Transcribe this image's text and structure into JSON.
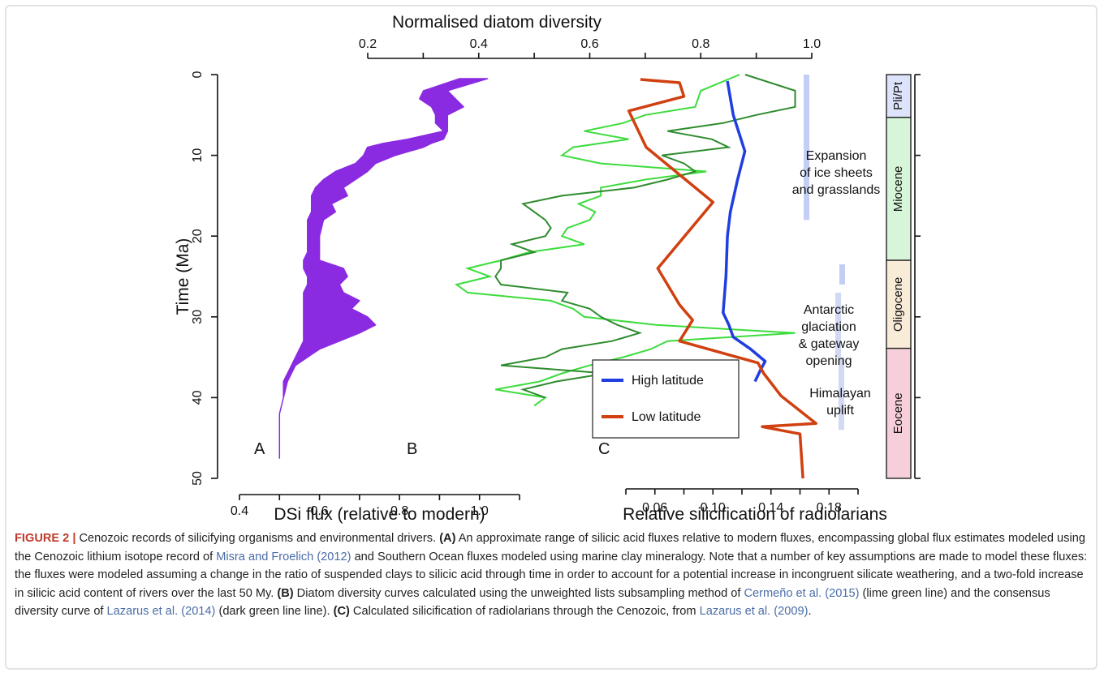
{
  "figure": {
    "label": "FIGURE 2 |",
    "caption_parts": [
      {
        "t": "text",
        "v": " Cenozoic records of silicifying organisms and environmental drivers. "
      },
      {
        "t": "bold",
        "v": "(A)"
      },
      {
        "t": "text",
        "v": " An approximate range of silicic acid fluxes relative to modern fluxes, encompassing global flux estimates modeled using the Cenozoic lithium isotope record of "
      },
      {
        "t": "ref",
        "v": "Misra and Froelich (2012)"
      },
      {
        "t": "text",
        "v": " and Southern Ocean fluxes modeled using marine clay mineralogy. Note that a number of key assumptions are made to model these fluxes: the fluxes were modeled assuming a change in the ratio of suspended clays to silicic acid through time in order to account for a potential increase in incongruent silicate weathering, and a two-fold increase in silicic acid content of rivers over the last 50 My. "
      },
      {
        "t": "bold",
        "v": "(B)"
      },
      {
        "t": "text",
        "v": " Diatom diversity curves calculated using the unweighted lists subsampling method of "
      },
      {
        "t": "ref",
        "v": "Cermeño et al. (2015)"
      },
      {
        "t": "text",
        "v": " (lime green line) and the consensus diversity curve of "
      },
      {
        "t": "ref",
        "v": "Lazarus et al. (2014)"
      },
      {
        "t": "text",
        "v": " (dark green line line). "
      },
      {
        "t": "bold",
        "v": "(C)"
      },
      {
        "t": "text",
        "v": " Calculated silicification of radiolarians through the Cenozoic, from "
      },
      {
        "t": "ref",
        "v": "Lazarus et al. (2009)"
      },
      {
        "t": "text",
        "v": "."
      }
    ]
  },
  "chart_data": [
    {
      "type": "area",
      "panel": "A",
      "xlabel": "DSi flux (relative to modern)",
      "ylabel": "Time (Ma)",
      "xlim": [
        0.4,
        1.1
      ],
      "ylim": [
        50,
        0
      ],
      "x_ticks": [
        0.4,
        0.6,
        0.8,
        1.0
      ],
      "x_tick_labels": [
        "0.4",
        "0.6",
        "0.8",
        "1.0"
      ],
      "y_ticks": [
        0,
        10,
        20,
        30,
        40,
        50
      ],
      "y_tick_labels": [
        "0",
        "10",
        "20",
        "30",
        "40",
        "50"
      ],
      "color": "#8a2be2",
      "series": [
        {
          "age": [
            0.5,
            2,
            3,
            4,
            5,
            6,
            7,
            8,
            8.5,
            9,
            10,
            11,
            12,
            13,
            14,
            15,
            16,
            17,
            18,
            20,
            22,
            23,
            24,
            25,
            26,
            27,
            28,
            29,
            30,
            31,
            32,
            33,
            34,
            35,
            36,
            38,
            40,
            42,
            44,
            46,
            47.5
          ],
          "lower": [
            0.95,
            0.86,
            0.85,
            0.88,
            0.89,
            0.89,
            0.91,
            0.82,
            0.76,
            0.72,
            0.71,
            0.69,
            0.64,
            0.61,
            0.59,
            0.58,
            0.58,
            0.58,
            0.57,
            0.57,
            0.57,
            0.56,
            0.56,
            0.57,
            0.57,
            0.56,
            0.56,
            0.56,
            0.56,
            0.56,
            0.56,
            0.56,
            0.55,
            0.54,
            0.53,
            0.51,
            0.51,
            0.5,
            0.5,
            0.5,
            0.5
          ],
          "upper": [
            1.02,
            0.92,
            0.94,
            0.96,
            0.92,
            0.92,
            0.92,
            0.91,
            0.88,
            0.86,
            0.79,
            0.74,
            0.72,
            0.69,
            0.66,
            0.67,
            0.63,
            0.64,
            0.61,
            0.6,
            0.6,
            0.6,
            0.66,
            0.67,
            0.65,
            0.66,
            0.7,
            0.68,
            0.72,
            0.74,
            0.7,
            0.65,
            0.6,
            0.57,
            0.54,
            0.52,
            0.51,
            0.5,
            0.5,
            0.5,
            0.5
          ]
        }
      ],
      "panel_letter_x": 0.45,
      "panel_letter_y": 47
    },
    {
      "type": "line",
      "panel": "B",
      "xlabel": "Normalised diatom diversity",
      "xlim": [
        0.2,
        1.0
      ],
      "x_ticks": [
        0.2,
        0.4,
        0.6,
        0.8,
        1.0
      ],
      "x_tick_labels": [
        "0.2",
        "0.4",
        "0.6",
        "0.8",
        "1.0"
      ],
      "series": [
        {
          "name": "lime",
          "color": "#3ddc3d",
          "age": [
            0,
            2,
            4,
            5,
            6,
            7,
            8,
            9,
            10,
            11,
            12,
            13,
            14,
            15,
            16,
            17,
            18,
            19,
            20,
            21,
            22,
            23,
            24,
            25,
            26,
            27,
            28,
            29,
            30,
            31,
            32,
            33,
            34,
            35,
            36,
            37,
            38,
            39,
            40,
            41
          ],
          "value": [
            0.87,
            0.8,
            0.79,
            0.7,
            0.66,
            0.59,
            0.67,
            0.57,
            0.55,
            0.62,
            0.81,
            0.7,
            0.62,
            0.62,
            0.58,
            0.61,
            0.6,
            0.56,
            0.55,
            0.59,
            0.49,
            0.44,
            0.38,
            0.42,
            0.36,
            0.38,
            0.53,
            0.57,
            0.59,
            0.72,
            0.97,
            0.74,
            0.71,
            0.66,
            0.6,
            0.55,
            0.51,
            0.43,
            0.52,
            0.5
          ]
        },
        {
          "name": "dark",
          "color": "#2e8b2e",
          "age": [
            0,
            2,
            4,
            5,
            6,
            7,
            8,
            9,
            10,
            11,
            12,
            13,
            14,
            15,
            16,
            17,
            18,
            19,
            20,
            21,
            22,
            23,
            24,
            25,
            26,
            27,
            28,
            29,
            30,
            31,
            32,
            33,
            34,
            35,
            36,
            37,
            38,
            39,
            40
          ],
          "value": [
            0.88,
            0.97,
            0.97,
            0.9,
            0.84,
            0.74,
            0.82,
            0.85,
            0.73,
            0.77,
            0.79,
            0.74,
            0.68,
            0.55,
            0.48,
            0.5,
            0.52,
            0.53,
            0.52,
            0.46,
            0.5,
            0.44,
            0.44,
            0.43,
            0.44,
            0.56,
            0.55,
            0.6,
            0.62,
            0.65,
            0.69,
            0.64,
            0.55,
            0.52,
            0.44,
            0.63,
            0.54,
            0.48,
            0.52
          ]
        }
      ],
      "panel_letter_x": 0.28,
      "panel_letter_y": 47
    },
    {
      "type": "line",
      "panel": "C",
      "xlabel": "Relative silicification of radiolarians",
      "xlim": [
        0.04,
        0.2
      ],
      "x_ticks": [
        0.06,
        0.1,
        0.14,
        0.18
      ],
      "x_tick_labels": [
        "0.06",
        "0.10",
        "0.14",
        "0.18"
      ],
      "series": [
        {
          "name": "High latitude",
          "color": "#1f3de0",
          "age": [
            0.8,
            5,
            9.5,
            13,
            17,
            20,
            25,
            29.5,
            31,
            32.5,
            34,
            35.5,
            36.5,
            38
          ],
          "value": [
            0.11,
            0.114,
            0.122,
            0.117,
            0.112,
            0.11,
            0.109,
            0.107,
            0.111,
            0.114,
            0.126,
            0.136,
            0.133,
            0.129
          ]
        },
        {
          "name": "Low latitude",
          "color": "#d04010",
          "age": [
            0.6,
            1,
            2.7,
            4.5,
            9,
            15.8,
            24,
            28.5,
            30.4,
            33,
            35.7,
            37,
            39.8,
            41.5,
            43.2,
            43.6,
            44.5,
            50
          ],
          "value": [
            0.05,
            0.077,
            0.08,
            0.042,
            0.054,
            0.1,
            0.062,
            0.077,
            0.086,
            0.077,
            0.131,
            0.135,
            0.147,
            0.159,
            0.171,
            0.134,
            0.16,
            0.162
          ]
        }
      ],
      "legend_position": "bottom-left",
      "panel_letter_x": 0.025,
      "panel_letter_y": 47
    }
  ],
  "events": [
    {
      "lines": [
        "Expansion",
        "of ice sheets",
        "and grasslands"
      ],
      "age": 13.5
    },
    {
      "lines": [
        "Antarctic",
        "glaciation",
        "& gateway",
        "opening"
      ],
      "age": 33.5
    },
    {
      "lines": [
        "Himalayan",
        "uplift"
      ],
      "age": 41.5
    }
  ],
  "event_bars": [
    {
      "age_top": 0,
      "age_bottom": 18,
      "color": "#b8c6f2"
    },
    {
      "age_top": 23.5,
      "age_bottom": 26,
      "color": "#b8c6f2"
    },
    {
      "age_top": 27,
      "age_bottom": 35,
      "color": "#c9d2f2"
    },
    {
      "age_top": 35,
      "age_bottom": 44,
      "color": "#c9d2f2"
    }
  ],
  "epochs": [
    {
      "name": "Pli/Pt",
      "age_top": 0,
      "age_bottom": 5.3,
      "color": "#dde3fb"
    },
    {
      "name": "Miocene",
      "age_top": 5.3,
      "age_bottom": 23,
      "color": "#d7f5d9"
    },
    {
      "name": "Oligocene",
      "age_top": 23,
      "age_bottom": 33.9,
      "color": "#f8ebd7"
    },
    {
      "name": "Eocene",
      "age_top": 33.9,
      "age_bottom": 50,
      "color": "#f6cfda"
    }
  ]
}
